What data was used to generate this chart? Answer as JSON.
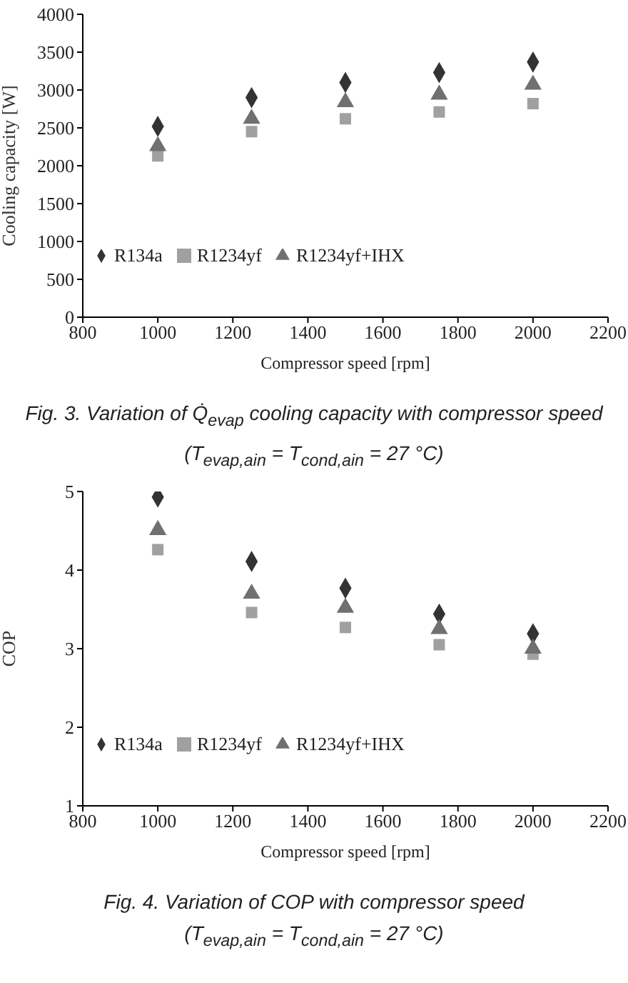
{
  "chart_data": [
    {
      "type": "scatter",
      "x": [
        1000,
        1250,
        1500,
        1750,
        2000
      ],
      "xlabel": "Compressor speed [rpm]",
      "ylabel": "Cooling capacity [W]",
      "xlim": [
        800,
        2200
      ],
      "xticks": [
        800,
        1000,
        1200,
        1400,
        1600,
        1800,
        2000,
        2200
      ],
      "ylim": [
        0,
        4000
      ],
      "yticks": [
        0,
        500,
        1000,
        1500,
        2000,
        2500,
        3000,
        3500,
        4000
      ],
      "series": [
        {
          "name": "R134a",
          "color": "#333333",
          "marker": "diamond",
          "values": [
            2520,
            2900,
            3100,
            3230,
            3370
          ]
        },
        {
          "name": "R1234yf",
          "color": "#a0a0a0",
          "marker": "square",
          "values": [
            2130,
            2450,
            2620,
            2710,
            2820
          ]
        },
        {
          "name": "R1234yf+IHX",
          "color": "#707070",
          "marker": "triangle",
          "values": [
            2260,
            2620,
            2840,
            2940,
            3070
          ]
        }
      ],
      "legend": "bottom left",
      "grid": false,
      "annotations": [
        "Fig. 3. Variation of Q̇$_{evap}$ cooling capacity with compressor speed",
        "(T$_{evap,ain}$ = T$_{cond,ain}$ = 27 °C)"
      ]
    },
    {
      "type": "scatter",
      "x": [
        1000,
        1250,
        1500,
        1750,
        2000
      ],
      "xlabel": "Compressor speed [rpm]",
      "ylabel": "COP",
      "xlim": [
        800,
        2200
      ],
      "xticks": [
        800,
        1000,
        1200,
        1400,
        1600,
        1800,
        2000,
        2200
      ],
      "ylim": [
        1,
        5
      ],
      "yticks": [
        1,
        2,
        3,
        4,
        5
      ],
      "series": [
        {
          "name": "R134a",
          "color": "#333333",
          "marker": "diamond",
          "values": [
            4.93,
            4.11,
            3.77,
            3.44,
            3.19
          ]
        },
        {
          "name": "R1234yf",
          "color": "#a0a0a0",
          "marker": "square",
          "values": [
            4.26,
            3.46,
            3.27,
            3.05,
            2.93
          ]
        },
        {
          "name": "R1234yf+IHX",
          "color": "#707070",
          "marker": "triangle",
          "values": [
            4.51,
            3.7,
            3.52,
            3.25,
            3.0
          ]
        }
      ],
      "legend": "bottom left",
      "grid": false,
      "annotations": [
        "Fig. 4. Variation of COP with compressor speed",
        "(T$_{evap,ain}$ = T$_{cond,ain}$ = 27 °C)"
      ]
    }
  ]
}
